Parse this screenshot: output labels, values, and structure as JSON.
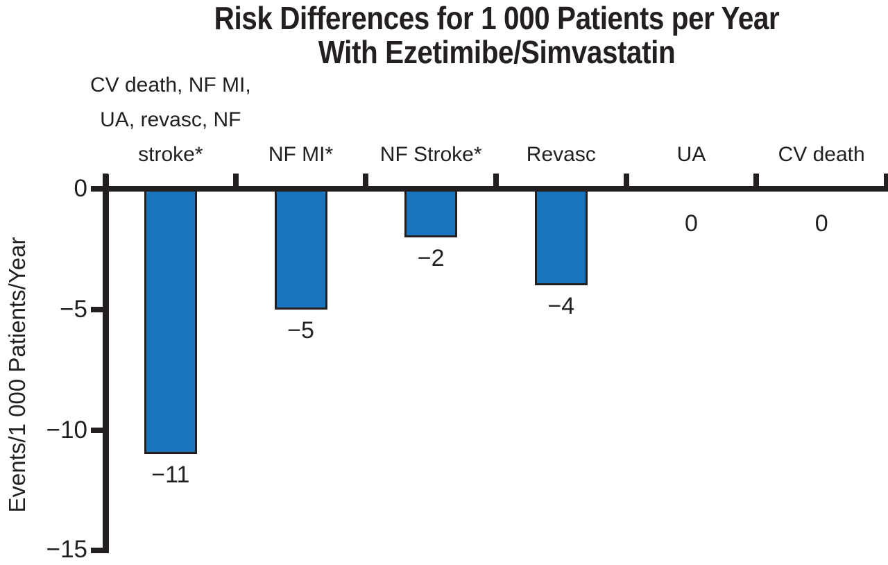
{
  "chart_data": {
    "type": "bar",
    "title_lines": [
      "Risk Differences for 1 000 Patients per Year",
      "With Ezetimibe/Simvastatin"
    ],
    "ylabel": "Events/1 000 Patients/Year",
    "xlabel": "",
    "ylim": [
      -15,
      0
    ],
    "grid": false,
    "legend": null,
    "categories": [
      "CV death, NF MI, UA, revasc, NF stroke*",
      "NF MI*",
      "NF Stroke*",
      "Revasc",
      "UA",
      "CV death"
    ],
    "category_label_lines": [
      [
        "CV death, NF MI,",
        "UA, revasc, NF",
        "stroke*"
      ],
      [
        "NF MI*"
      ],
      [
        "NF Stroke*"
      ],
      [
        "Revasc"
      ],
      [
        "UA"
      ],
      [
        "CV death"
      ]
    ],
    "values": [
      -11,
      -5,
      -2,
      -4,
      0,
      0
    ],
    "value_labels": [
      "−11",
      "−5",
      "−2",
      "−4",
      "0",
      "0"
    ],
    "y_ticks": [
      {
        "value": 0,
        "label": "0"
      },
      {
        "value": -5,
        "label": "−5"
      },
      {
        "value": -10,
        "label": "−10"
      },
      {
        "value": -15,
        "label": "−15"
      }
    ],
    "colors": {
      "bar_fill": "#1B75BC",
      "bar_stroke": "#231F20",
      "axis": "#231F20",
      "text": "#231F20"
    }
  }
}
